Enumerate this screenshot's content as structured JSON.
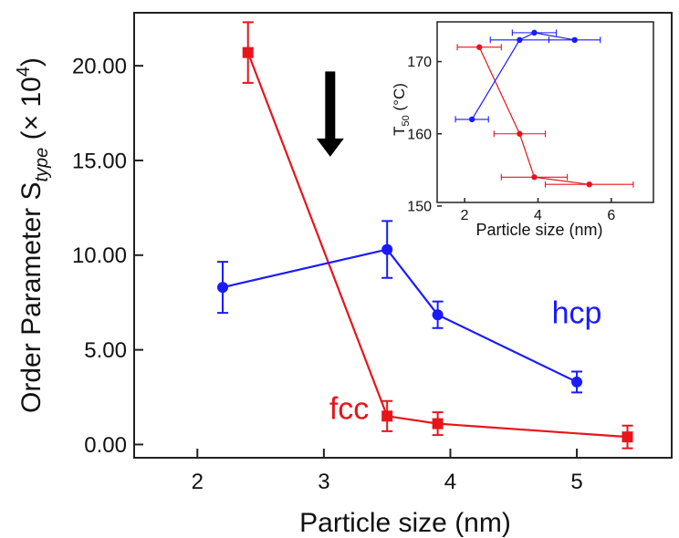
{
  "chart_data": [
    {
      "type": "line",
      "title": "",
      "xlabel": "Particle size (nm)",
      "ylabel_base": "Order Parameter S",
      "ylabel_sub": "type",
      "ylabel_suffix": " (× 10",
      "ylabel_exp": "4",
      "ylabel_close": ")",
      "xlim": [
        1.5,
        5.75
      ],
      "ylim": [
        -0.7,
        22.8
      ],
      "xticks": [
        2,
        3,
        4,
        5
      ],
      "xtick_labels": [
        "2",
        "3",
        "4",
        "5"
      ],
      "yticks": [
        0,
        5,
        10,
        15,
        20
      ],
      "ytick_labels": [
        "0.00",
        "5.00",
        "10.00",
        "15.00",
        "20.00"
      ],
      "grid": false,
      "series": [
        {
          "name": "fcc",
          "color": "#e8141c",
          "marker": "square",
          "points": [
            {
              "x": 2.4,
              "y": 20.7,
              "err": 1.6
            },
            {
              "x": 3.5,
              "y": 1.5,
              "err": 0.8
            },
            {
              "x": 3.9,
              "y": 1.1,
              "err": 0.6
            },
            {
              "x": 5.4,
              "y": 0.4,
              "err": 0.6
            }
          ]
        },
        {
          "name": "hcp",
          "color": "#1a1aff",
          "marker": "circle",
          "points": [
            {
              "x": 2.2,
              "y": 8.3,
              "err": 1.35
            },
            {
              "x": 3.5,
              "y": 10.3,
              "err": 1.5
            },
            {
              "x": 3.9,
              "y": 6.85,
              "err": 0.7
            },
            {
              "x": 5.0,
              "y": 3.3,
              "err": 0.55
            }
          ]
        }
      ],
      "annotations": [
        {
          "text": "fcc",
          "x": 3.2,
          "y": 1.35,
          "color": "#e8141c"
        },
        {
          "text": "hcp",
          "x": 5.0,
          "y": 6.4,
          "color": "#1a1aff"
        },
        {
          "type": "arrow",
          "direction": "down",
          "color": "#000000",
          "x": 3.05,
          "y_from": 19.7,
          "y_to": 15.2
        }
      ]
    },
    {
      "type": "line",
      "title": "",
      "xlabel": "Particle size (nm)",
      "ylabel_base": "T",
      "ylabel_sub": "50",
      "ylabel_suffix": " (°C)",
      "xlim": [
        1.25,
        7.15
      ],
      "ylim": [
        150.5,
        175.5
      ],
      "xticks": [
        2,
        4,
        6
      ],
      "xtick_labels": [
        "2",
        "4",
        "6"
      ],
      "yticks": [
        150,
        160,
        170
      ],
      "ytick_labels": [
        "150",
        "160",
        "170"
      ],
      "grid": false,
      "series": [
        {
          "name": "fcc",
          "color": "#e8141c",
          "marker": "circle",
          "points": [
            {
              "x": 2.4,
              "y": 172,
              "xerr": 0.6
            },
            {
              "x": 3.5,
              "y": 160,
              "xerr": 0.7
            },
            {
              "x": 3.9,
              "y": 154,
              "xerr": 0.9
            },
            {
              "x": 5.4,
              "y": 153,
              "xerr": 1.2
            }
          ]
        },
        {
          "name": "hcp",
          "color": "#1a1aff",
          "marker": "circle",
          "points": [
            {
              "x": 2.2,
              "y": 162,
              "xerr": 0.45
            },
            {
              "x": 3.5,
              "y": 173,
              "xerr": 0.8
            },
            {
              "x": 3.9,
              "y": 174,
              "xerr": 0.6
            },
            {
              "x": 5.0,
              "y": 173,
              "xerr": 0.7
            }
          ]
        }
      ]
    }
  ]
}
